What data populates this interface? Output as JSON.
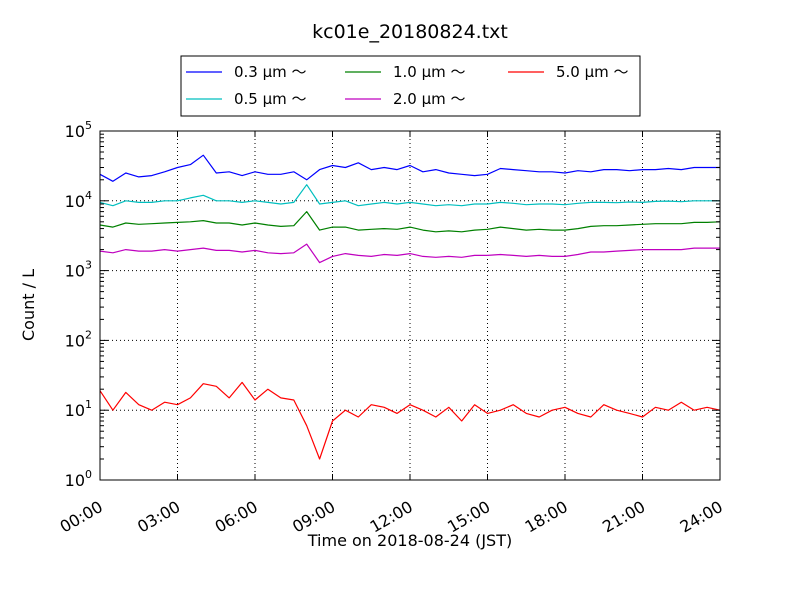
{
  "chart_data": {
    "type": "line",
    "title": "kc01e_20180824.txt",
    "xlabel": "Time on 2018-08-24 (JST)",
    "ylabel": "Count / L",
    "yscale": "log",
    "ylim": [
      1,
      100000
    ],
    "xlim": [
      "00:00",
      "24:00"
    ],
    "x_tick_labels": [
      "00:00",
      "03:00",
      "06:00",
      "09:00",
      "12:00",
      "15:00",
      "18:00",
      "21:00",
      "24:00"
    ],
    "y_tick_labels": [
      {
        "base": "10",
        "exp": "0"
      },
      {
        "base": "10",
        "exp": "1"
      },
      {
        "base": "10",
        "exp": "2"
      },
      {
        "base": "10",
        "exp": "3"
      },
      {
        "base": "10",
        "exp": "4"
      },
      {
        "base": "10",
        "exp": "5"
      }
    ],
    "grid": true,
    "legend_position": "top-center",
    "x_hours": [
      0,
      0.5,
      1,
      1.5,
      2,
      2.5,
      3,
      3.5,
      4,
      4.5,
      5,
      5.5,
      6,
      6.5,
      7,
      7.5,
      8,
      8.5,
      9,
      9.5,
      10,
      10.5,
      11,
      11.5,
      12,
      12.5,
      13,
      13.5,
      14,
      14.5,
      15,
      15.5,
      16,
      16.5,
      17,
      17.5,
      18,
      18.5,
      19,
      19.5,
      20,
      20.5,
      21,
      21.5,
      22,
      22.5,
      23,
      23.5,
      24
    ],
    "series": [
      {
        "name": "0.3 μm ～",
        "color": "#0000ff",
        "values": [
          24000,
          19000,
          25000,
          22000,
          23000,
          26000,
          30000,
          33000,
          45000,
          25000,
          26000,
          23000,
          26000,
          24000,
          24000,
          26000,
          20000,
          28000,
          32000,
          30000,
          35000,
          28000,
          30000,
          28000,
          32000,
          26000,
          28000,
          25000,
          24000,
          23000,
          24000,
          29000,
          28000,
          27000,
          26000,
          26000,
          25000,
          27000,
          26000,
          28000,
          28000,
          27000,
          28000,
          28000,
          29000,
          28000,
          30000,
          30000,
          30000
        ]
      },
      {
        "name": "0.5 μm ～",
        "color": "#00bfbf",
        "values": [
          9500,
          8500,
          10000,
          9500,
          9500,
          10000,
          10000,
          11000,
          12000,
          10000,
          10000,
          9500,
          10000,
          9500,
          9000,
          9500,
          17000,
          9000,
          9500,
          10000,
          8500,
          9000,
          9500,
          9000,
          9500,
          9000,
          8500,
          8800,
          8500,
          9000,
          9000,
          9500,
          9200,
          8800,
          9000,
          9000,
          8800,
          9200,
          9500,
          9500,
          9400,
          9600,
          9500,
          9800,
          9900,
          9700,
          10000,
          10000,
          10000
        ]
      },
      {
        "name": "1.0 μm ～",
        "color": "#008000",
        "values": [
          4500,
          4200,
          4800,
          4600,
          4700,
          4800,
          4900,
          5000,
          5200,
          4800,
          4800,
          4500,
          4800,
          4500,
          4300,
          4400,
          7000,
          3800,
          4200,
          4200,
          3800,
          3900,
          4000,
          3900,
          4200,
          3800,
          3600,
          3700,
          3600,
          3800,
          3900,
          4200,
          4000,
          3800,
          3900,
          3800,
          3800,
          4000,
          4300,
          4400,
          4400,
          4500,
          4600,
          4700,
          4700,
          4700,
          4900,
          4900,
          5000
        ]
      },
      {
        "name": "2.0 μm ～",
        "color": "#bf00bf",
        "values": [
          1900,
          1800,
          2000,
          1900,
          1900,
          2000,
          1900,
          2000,
          2100,
          1950,
          1950,
          1850,
          1950,
          1800,
          1750,
          1800,
          2400,
          1300,
          1600,
          1750,
          1650,
          1600,
          1700,
          1650,
          1750,
          1600,
          1550,
          1600,
          1550,
          1650,
          1650,
          1700,
          1650,
          1600,
          1650,
          1600,
          1600,
          1700,
          1850,
          1850,
          1900,
          1950,
          2000,
          2000,
          2000,
          2000,
          2100,
          2100,
          2100
        ]
      },
      {
        "name": "5.0 μm ～",
        "color": "#ff0000",
        "values": [
          19,
          10,
          18,
          12,
          10,
          13,
          12,
          15,
          24,
          22,
          15,
          25,
          14,
          20,
          15,
          14,
          6,
          2,
          7,
          10,
          8,
          12,
          11,
          9,
          12,
          10,
          8,
          11,
          7,
          12,
          9,
          10,
          12,
          9,
          8,
          10,
          11,
          9,
          8,
          12,
          10,
          9,
          8,
          11,
          10,
          13,
          10,
          11,
          10
        ]
      }
    ]
  }
}
